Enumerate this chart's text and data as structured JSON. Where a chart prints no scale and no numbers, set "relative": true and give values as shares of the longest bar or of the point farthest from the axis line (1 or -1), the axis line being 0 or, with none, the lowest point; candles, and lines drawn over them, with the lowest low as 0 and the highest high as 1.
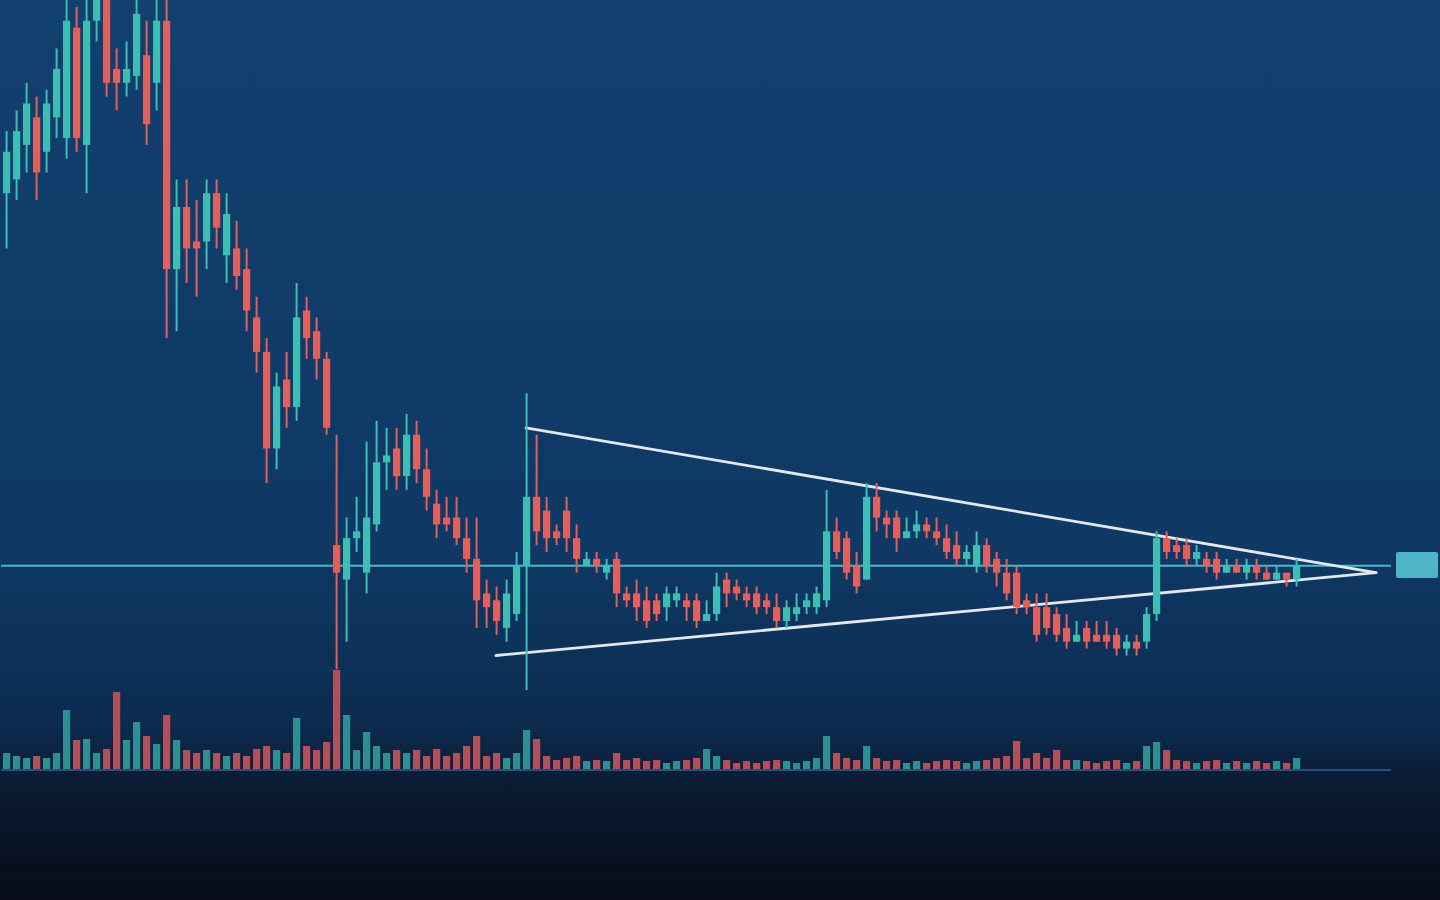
{
  "chart_data": [
    {
      "type": "candlestick",
      "relative": true,
      "categories": [
        null,
        null,
        null,
        null,
        null,
        null,
        null,
        null,
        null,
        null,
        null,
        null,
        null,
        null,
        null,
        null,
        null,
        null,
        null,
        null,
        null,
        null,
        null,
        null,
        null,
        null,
        null,
        null,
        null,
        null,
        null,
        null,
        null,
        null,
        null,
        null,
        null,
        null,
        null,
        null,
        null,
        null,
        null,
        null,
        null,
        null,
        null,
        null,
        null,
        null,
        null,
        null,
        null,
        null,
        null,
        null,
        null,
        null,
        null,
        null,
        null,
        null,
        null,
        null,
        null,
        null,
        null,
        null,
        null,
        null,
        null,
        null,
        null,
        null,
        null,
        null,
        null,
        null,
        null,
        null,
        null,
        null,
        null,
        null,
        null,
        null,
        null,
        null,
        null,
        null,
        null,
        null,
        null,
        null,
        null,
        null,
        null,
        null,
        null,
        null,
        null,
        null,
        null,
        null,
        null,
        null,
        null,
        null,
        null,
        null,
        null,
        null,
        null,
        null,
        null,
        null,
        null,
        null,
        null,
        null,
        null,
        null,
        null,
        null,
        null,
        null,
        null,
        null,
        null,
        null,
        null,
        null,
        null,
        null,
        null,
        null,
        null,
        null,
        null
      ],
      "ohlc": [
        [
          0.72,
          0.81,
          0.64,
          0.78
        ],
        [
          0.74,
          0.84,
          0.71,
          0.81
        ],
        [
          0.79,
          0.88,
          0.75,
          0.85
        ],
        [
          0.83,
          0.86,
          0.71,
          0.75
        ],
        [
          0.78,
          0.87,
          0.75,
          0.85
        ],
        [
          0.83,
          0.93,
          0.8,
          0.9
        ],
        [
          0.8,
          1,
          0.77,
          0.97
        ],
        [
          0.96,
          0.99,
          0.78,
          0.8
        ],
        [
          0.79,
          1,
          0.72,
          0.97
        ],
        [
          0.97,
          1,
          0.94,
          1
        ],
        [
          1,
          1,
          0.86,
          0.88
        ],
        [
          0.9,
          0.93,
          0.84,
          0.88
        ],
        [
          0.88,
          0.94,
          0.86,
          0.9
        ],
        [
          0.89,
          1,
          0.87,
          0.98
        ],
        [
          0.92,
          0.97,
          0.79,
          0.82
        ],
        [
          0.88,
          1,
          0.84,
          0.97
        ],
        [
          0.97,
          1,
          0.51,
          0.61
        ],
        [
          0.61,
          0.74,
          0.52,
          0.7
        ],
        [
          0.7,
          0.74,
          0.59,
          0.64
        ],
        [
          0.65,
          0.71,
          0.57,
          0.64
        ],
        [
          0.65,
          0.74,
          0.61,
          0.72
        ],
        [
          0.72,
          0.74,
          0.64,
          0.67
        ],
        [
          0.63,
          0.72,
          0.59,
          0.69
        ],
        [
          0.64,
          0.68,
          0.58,
          0.6
        ],
        [
          0.61,
          0.64,
          0.52,
          0.55
        ],
        [
          0.54,
          0.57,
          0.46,
          0.49
        ],
        [
          0.49,
          0.51,
          0.3,
          0.35
        ],
        [
          0.35,
          0.46,
          0.32,
          0.44
        ],
        [
          0.45,
          0.49,
          0.38,
          0.41
        ],
        [
          0.41,
          0.59,
          0.39,
          0.54
        ],
        [
          0.55,
          0.57,
          0.48,
          0.51
        ],
        [
          0.52,
          0.54,
          0.45,
          0.48
        ],
        [
          0.48,
          0.49,
          0.37,
          0.38
        ],
        [
          0.21,
          0.37,
          0.03,
          0.17
        ],
        [
          0.16,
          0.25,
          0.07,
          0.22
        ],
        [
          0.22,
          0.28,
          0.2,
          0.23
        ],
        [
          0.17,
          0.36,
          0.14,
          0.25
        ],
        [
          0.24,
          0.39,
          0.23,
          0.33
        ],
        [
          0.33,
          0.38,
          0.29,
          0.34
        ],
        [
          0.35,
          0.38,
          0.29,
          0.31
        ],
        [
          0.31,
          0.4,
          0.29,
          0.37
        ],
        [
          0.37,
          0.39,
          0.3,
          0.32
        ],
        [
          0.32,
          0.35,
          0.26,
          0.28
        ],
        [
          0.27,
          0.29,
          0.22,
          0.24
        ],
        [
          0.25,
          0.28,
          0.23,
          0.24
        ],
        [
          0.25,
          0.28,
          0.21,
          0.22
        ],
        [
          0.22,
          0.25,
          0.17,
          0.19
        ],
        [
          0.19,
          0.25,
          0.09,
          0.13
        ],
        [
          0.14,
          0.16,
          0.09,
          0.12
        ],
        [
          0.13,
          0.15,
          0.08,
          0.1
        ],
        [
          0.09,
          0.16,
          0.07,
          0.14
        ],
        [
          0.11,
          0.2,
          0.1,
          0.18
        ],
        [
          0.18,
          0.43,
          0,
          0.28
        ],
        [
          0.28,
          0.37,
          0.21,
          0.23
        ],
        [
          0.26,
          0.28,
          0.2,
          0.22
        ],
        [
          0.23,
          0.24,
          0.21,
          0.22
        ],
        [
          0.26,
          0.28,
          0.2,
          0.22
        ],
        [
          0.22,
          0.24,
          0.17,
          0.19
        ],
        [
          0.18,
          0.2,
          0.18,
          0.19
        ],
        [
          0.19,
          0.2,
          0.17,
          0.18
        ],
        [
          0.17,
          0.19,
          0.16,
          0.18
        ],
        [
          0.19,
          0.2,
          0.12,
          0.14
        ],
        [
          0.14,
          0.15,
          0.12,
          0.13
        ],
        [
          0.14,
          0.16,
          0.1,
          0.12
        ],
        [
          0.13,
          0.15,
          0.09,
          0.1
        ],
        [
          0.13,
          0.14,
          0.1,
          0.11
        ],
        [
          0.12,
          0.15,
          0.1,
          0.14
        ],
        [
          0.13,
          0.15,
          0.12,
          0.14
        ],
        [
          0.13,
          0.14,
          0.1,
          0.12
        ],
        [
          0.13,
          0.14,
          0.09,
          0.1
        ],
        [
          0.1,
          0.13,
          0.1,
          0.11
        ],
        [
          0.11,
          0.17,
          0.1,
          0.15
        ],
        [
          0.16,
          0.17,
          0.12,
          0.14
        ],
        [
          0.15,
          0.16,
          0.13,
          0.14
        ],
        [
          0.14,
          0.15,
          0.12,
          0.13
        ],
        [
          0.14,
          0.15,
          0.11,
          0.12
        ],
        [
          0.13,
          0.14,
          0.11,
          0.12
        ],
        [
          0.12,
          0.14,
          0.09,
          0.1
        ],
        [
          0.1,
          0.13,
          0.09,
          0.12
        ],
        [
          0.11,
          0.14,
          0.1,
          0.12
        ],
        [
          0.12,
          0.14,
          0.11,
          0.13
        ],
        [
          0.12,
          0.15,
          0.11,
          0.14
        ],
        [
          0.13,
          0.29,
          0.12,
          0.23
        ],
        [
          0.23,
          0.25,
          0.19,
          0.2
        ],
        [
          0.22,
          0.23,
          0.16,
          0.17
        ],
        [
          0.18,
          0.2,
          0.14,
          0.15
        ],
        [
          0.16,
          0.3,
          0.16,
          0.28
        ],
        [
          0.28,
          0.3,
          0.23,
          0.25
        ],
        [
          0.25,
          0.26,
          0.22,
          0.24
        ],
        [
          0.25,
          0.26,
          0.2,
          0.22
        ],
        [
          0.22,
          0.25,
          0.22,
          0.23
        ],
        [
          0.23,
          0.26,
          0.22,
          0.24
        ],
        [
          0.24,
          0.25,
          0.22,
          0.23
        ],
        [
          0.23,
          0.25,
          0.21,
          0.22
        ],
        [
          0.22,
          0.24,
          0.19,
          0.2
        ],
        [
          0.21,
          0.23,
          0.18,
          0.19
        ],
        [
          0.19,
          0.21,
          0.18,
          0.2
        ],
        [
          0.18,
          0.23,
          0.17,
          0.21
        ],
        [
          0.21,
          0.22,
          0.17,
          0.18
        ],
        [
          0.19,
          0.2,
          0.15,
          0.17
        ],
        [
          0.17,
          0.19,
          0.13,
          0.14
        ],
        [
          0.17,
          0.18,
          0.11,
          0.12
        ],
        [
          0.13,
          0.14,
          0.11,
          0.12
        ],
        [
          0.12,
          0.14,
          0.07,
          0.08
        ],
        [
          0.12,
          0.14,
          0.08,
          0.09
        ],
        [
          0.11,
          0.12,
          0.07,
          0.08
        ],
        [
          0.09,
          0.11,
          0.06,
          0.07
        ],
        [
          0.07,
          0.1,
          0.07,
          0.08
        ],
        [
          0.09,
          0.1,
          0.06,
          0.07
        ],
        [
          0.08,
          0.1,
          0.07,
          0.07
        ],
        [
          0.08,
          0.1,
          0.06,
          0.07
        ],
        [
          0.08,
          0.09,
          0.05,
          0.06
        ],
        [
          0.06,
          0.08,
          0.05,
          0.07
        ],
        [
          0.07,
          0.08,
          0.05,
          0.06
        ],
        [
          0.07,
          0.12,
          0.06,
          0.11
        ],
        [
          0.11,
          0.23,
          0.1,
          0.22
        ],
        [
          0.22,
          0.23,
          0.19,
          0.2
        ],
        [
          0.21,
          0.22,
          0.19,
          0.2
        ],
        [
          0.21,
          0.22,
          0.18,
          0.19
        ],
        [
          0.19,
          0.21,
          0.18,
          0.2
        ],
        [
          0.19,
          0.2,
          0.17,
          0.18
        ],
        [
          0.19,
          0.2,
          0.16,
          0.17
        ],
        [
          0.17,
          0.19,
          0.17,
          0.18
        ],
        [
          0.18,
          0.19,
          0.17,
          0.17
        ],
        [
          0.17,
          0.19,
          0.16,
          0.18
        ],
        [
          0.18,
          0.19,
          0.16,
          0.17
        ],
        [
          0.17,
          0.18,
          0.16,
          0.16
        ],
        [
          0.16,
          0.18,
          0.16,
          0.17
        ],
        [
          0.17,
          0.17,
          0.15,
          0.16
        ],
        [
          0.16,
          0.19,
          0.15,
          0.18
        ],
        null,
        null,
        null,
        null,
        null,
        null,
        null,
        null,
        null
      ],
      "colors": [
        "#3dbdb3",
        "#3dbdb3",
        "#3dbdb3",
        "#e0605e",
        "#3dbdb3",
        "#3dbdb3",
        "#3dbdb3",
        "#e0605e",
        "#3dbdb3",
        "#3dbdb3",
        "#e0605e",
        "#e0605e",
        "#3dbdb3",
        "#3dbdb3",
        "#e0605e",
        "#3dbdb3",
        "#e0605e",
        "#3dbdb3",
        "#e0605e",
        "#e0605e",
        "#3dbdb3",
        "#e0605e",
        "#3dbdb3",
        "#e0605e",
        "#e0605e",
        "#e0605e",
        "#e0605e",
        "#3dbdb3",
        "#e0605e",
        "#3dbdb3",
        "#e0605e",
        "#e0605e",
        "#e0605e",
        "#e0605e",
        "#3dbdb3",
        "#3dbdb3",
        "#3dbdb3",
        "#3dbdb3",
        "#3dbdb3",
        "#e0605e",
        "#3dbdb3",
        "#e0605e",
        "#e0605e",
        "#e0605e",
        "#e0605e",
        "#e0605e",
        "#e0605e",
        "#e0605e",
        "#e0605e",
        "#e0605e",
        "#3dbdb3",
        "#3dbdb3",
        "#3dbdb3",
        "#e0605e",
        "#e0605e",
        "#e0605e",
        "#e0605e",
        "#e0605e",
        "#3dbdb3",
        "#e0605e",
        "#3dbdb3",
        "#e0605e",
        "#e0605e",
        "#e0605e",
        "#e0605e",
        "#e0605e",
        "#3dbdb3",
        "#3dbdb3",
        "#e0605e",
        "#e0605e",
        "#3dbdb3",
        "#3dbdb3",
        "#e0605e",
        "#e0605e",
        "#e0605e",
        "#e0605e",
        "#e0605e",
        "#e0605e",
        "#3dbdb3",
        "#3dbdb3",
        "#3dbdb3",
        "#3dbdb3",
        "#3dbdb3",
        "#e0605e",
        "#e0605e",
        "#e0605e",
        "#3dbdb3",
        "#e0605e",
        "#e0605e",
        "#e0605e",
        "#3dbdb3",
        "#3dbdb3",
        "#e0605e",
        "#e0605e",
        "#e0605e",
        "#e0605e",
        "#3dbdb3",
        "#3dbdb3",
        "#e0605e",
        "#e0605e",
        "#e0605e",
        "#e0605e",
        "#e0605e",
        "#e0605e",
        "#e0605e",
        "#e0605e",
        "#e0605e",
        "#3dbdb3",
        "#e0605e",
        "#e0605e",
        "#e0605e",
        "#e0605e",
        "#3dbdb3",
        "#e0605e",
        "#3dbdb3",
        "#3dbdb3",
        "#e0605e",
        "#e0605e",
        "#e0605e",
        "#3dbdb3",
        "#e0605e",
        "#e0605e",
        "#3dbdb3",
        "#e0605e",
        "#3dbdb3",
        "#e0605e",
        "#e0605e",
        "#3dbdb3",
        "#e0605e",
        "#3dbdb3",
        null,
        null,
        null,
        null,
        null,
        null,
        null,
        null,
        null
      ],
      "series": [
        {
          "type": "line",
          "color": "#e3e8ef",
          "values": [
            null,
            null,
            null,
            null,
            null,
            null,
            null,
            null,
            null,
            null,
            null,
            null,
            null,
            null,
            null,
            null,
            null,
            null,
            null,
            null,
            null,
            null,
            null,
            null,
            null,
            null,
            null,
            null,
            null,
            null,
            null,
            null,
            null,
            null,
            null,
            null,
            null,
            null,
            null,
            null,
            null,
            null,
            null,
            null,
            null,
            null,
            null,
            null,
            null,
            null,
            null,
            null,
            0.38,
            null,
            null,
            null,
            null,
            null,
            null,
            null,
            null,
            null,
            null,
            null,
            null,
            null,
            null,
            null,
            null,
            null,
            null,
            null,
            null,
            null,
            null,
            null,
            null,
            null,
            null,
            null,
            null,
            null,
            null,
            null,
            null,
            null,
            null,
            null,
            null,
            null,
            null,
            null,
            null,
            null,
            null,
            null,
            null,
            null,
            null,
            null,
            null,
            null,
            null,
            null,
            null,
            null,
            null,
            null,
            null,
            null,
            null,
            null,
            null,
            null,
            null,
            null,
            null,
            null,
            null,
            null,
            null,
            null,
            null,
            null,
            null,
            null,
            null,
            null,
            null,
            null,
            null,
            null,
            null,
            null,
            null,
            null,
            null,
            0.17,
            null
          ]
        },
        {
          "type": "line",
          "color": "#e3e8ef",
          "values": [
            null,
            null,
            null,
            null,
            null,
            null,
            null,
            null,
            null,
            null,
            null,
            null,
            null,
            null,
            null,
            null,
            null,
            null,
            null,
            null,
            null,
            null,
            null,
            null,
            null,
            null,
            null,
            null,
            null,
            null,
            null,
            null,
            null,
            null,
            null,
            null,
            null,
            null,
            null,
            null,
            null,
            null,
            null,
            null,
            null,
            null,
            null,
            null,
            null,
            0.05,
            null,
            null,
            null,
            null,
            null,
            null,
            null,
            null,
            null,
            null,
            null,
            null,
            null,
            null,
            null,
            null,
            null,
            null,
            null,
            null,
            null,
            null,
            null,
            null,
            null,
            null,
            null,
            null,
            null,
            null,
            null,
            null,
            null,
            null,
            null,
            null,
            null,
            null,
            null,
            null,
            null,
            null,
            null,
            null,
            null,
            null,
            null,
            null,
            null,
            null,
            null,
            null,
            null,
            null,
            null,
            null,
            null,
            null,
            null,
            null,
            null,
            null,
            null,
            null,
            null,
            null,
            null,
            null,
            null,
            null,
            null,
            null,
            null,
            null,
            null,
            null,
            null,
            null,
            null,
            null,
            null,
            null,
            null,
            null,
            null,
            null,
            null,
            0.17,
            null
          ]
        }
      ],
      "ref_lines": [
        {
          "axis": "y",
          "value": 0.18,
          "color": "#4fb6c9"
        }
      ]
    },
    {
      "type": "bar",
      "relative": true,
      "categories": [
        null,
        null,
        null,
        null,
        null,
        null,
        null,
        null,
        null,
        null,
        null,
        null,
        null,
        null,
        null,
        null,
        null,
        null,
        null,
        null,
        null,
        null,
        null,
        null,
        null,
        null,
        null,
        null,
        null,
        null,
        null,
        null,
        null,
        null,
        null,
        null,
        null,
        null,
        null,
        null,
        null,
        null,
        null,
        null,
        null,
        null,
        null,
        null,
        null,
        null,
        null,
        null,
        null,
        null,
        null,
        null,
        null,
        null,
        null,
        null,
        null,
        null,
        null,
        null,
        null,
        null,
        null,
        null,
        null,
        null,
        null,
        null,
        null,
        null,
        null,
        null,
        null,
        null,
        null,
        null,
        null,
        null,
        null,
        null,
        null,
        null,
        null,
        null,
        null,
        null,
        null,
        null,
        null,
        null,
        null,
        null,
        null,
        null,
        null,
        null,
        null,
        null,
        null,
        null,
        null,
        null,
        null,
        null,
        null,
        null,
        null,
        null,
        null,
        null,
        null,
        null,
        null,
        null,
        null,
        null,
        null,
        null,
        null,
        null,
        null,
        null,
        null,
        null,
        null,
        null,
        null,
        null,
        null,
        null,
        null,
        null,
        null,
        null,
        null
      ],
      "values": [
        0.17,
        0.14,
        0.12,
        0.14,
        0.12,
        0.17,
        0.6,
        0.3,
        0.31,
        0.17,
        0.21,
        0.78,
        0.3,
        0.48,
        0.34,
        0.26,
        0.55,
        0.3,
        0.2,
        0.17,
        0.2,
        0.17,
        0.14,
        0.17,
        0.14,
        0.21,
        0.24,
        0.2,
        0.17,
        0.52,
        0.24,
        0.2,
        0.28,
        1,
        0.55,
        0.2,
        0.38,
        0.24,
        0.17,
        0.2,
        0.17,
        0.2,
        0.14,
        0.21,
        0.14,
        0.17,
        0.24,
        0.34,
        0.14,
        0.17,
        0.12,
        0.17,
        0.4,
        0.31,
        0.14,
        0.1,
        0.12,
        0.14,
        0.09,
        0.1,
        0.09,
        0.17,
        0.1,
        0.12,
        0.09,
        0.1,
        0.07,
        0.09,
        0.1,
        0.12,
        0.21,
        0.14,
        0.1,
        0.07,
        0.09,
        0.07,
        0.09,
        0.1,
        0.09,
        0.07,
        0.09,
        0.12,
        0.34,
        0.17,
        0.12,
        0.1,
        0.24,
        0.12,
        0.09,
        0.1,
        0.07,
        0.09,
        0.07,
        0.09,
        0.1,
        0.09,
        0.07,
        0.09,
        0.1,
        0.12,
        0.14,
        0.29,
        0.12,
        0.17,
        0.12,
        0.2,
        0.1,
        0.1,
        0.09,
        0.07,
        0.09,
        0.1,
        0.07,
        0.09,
        0.24,
        0.28,
        0.2,
        0.1,
        0.09,
        0.07,
        0.09,
        0.1,
        0.07,
        0.09,
        0.07,
        0.09,
        0.07,
        0.09,
        0.07,
        0.12,
        null,
        null,
        null,
        null,
        null,
        null,
        null,
        null,
        null
      ],
      "colors": [
        "#2e8f93",
        "#2e8f93",
        "#2e8f93",
        "#b0505a",
        "#2e8f93",
        "#2e8f93",
        "#2e8f93",
        "#b0505a",
        "#2e8f93",
        "#2e8f93",
        "#b0505a",
        "#b0505a",
        "#2e8f93",
        "#2e8f93",
        "#b0505a",
        "#2e8f93",
        "#b0505a",
        "#2e8f93",
        "#b0505a",
        "#b0505a",
        "#2e8f93",
        "#b0505a",
        "#2e8f93",
        "#b0505a",
        "#b0505a",
        "#b0505a",
        "#b0505a",
        "#2e8f93",
        "#b0505a",
        "#2e8f93",
        "#b0505a",
        "#b0505a",
        "#b0505a",
        "#b0505a",
        "#2e8f93",
        "#2e8f93",
        "#2e8f93",
        "#2e8f93",
        "#2e8f93",
        "#b0505a",
        "#2e8f93",
        "#b0505a",
        "#b0505a",
        "#b0505a",
        "#b0505a",
        "#b0505a",
        "#b0505a",
        "#b0505a",
        "#b0505a",
        "#b0505a",
        "#2e8f93",
        "#2e8f93",
        "#2e8f93",
        "#b0505a",
        "#b0505a",
        "#b0505a",
        "#b0505a",
        "#b0505a",
        "#2e8f93",
        "#b0505a",
        "#2e8f93",
        "#b0505a",
        "#b0505a",
        "#b0505a",
        "#b0505a",
        "#b0505a",
        "#2e8f93",
        "#2e8f93",
        "#b0505a",
        "#b0505a",
        "#2e8f93",
        "#2e8f93",
        "#b0505a",
        "#b0505a",
        "#b0505a",
        "#b0505a",
        "#b0505a",
        "#b0505a",
        "#2e8f93",
        "#2e8f93",
        "#2e8f93",
        "#2e8f93",
        "#2e8f93",
        "#b0505a",
        "#b0505a",
        "#b0505a",
        "#2e8f93",
        "#b0505a",
        "#b0505a",
        "#b0505a",
        "#2e8f93",
        "#2e8f93",
        "#b0505a",
        "#b0505a",
        "#b0505a",
        "#b0505a",
        "#2e8f93",
        "#2e8f93",
        "#b0505a",
        "#b0505a",
        "#b0505a",
        "#b0505a",
        "#b0505a",
        "#b0505a",
        "#b0505a",
        "#b0505a",
        "#b0505a",
        "#2e8f93",
        "#b0505a",
        "#b0505a",
        "#b0505a",
        "#b0505a",
        "#2e8f93",
        "#b0505a",
        "#2e8f93",
        "#2e8f93",
        "#b0505a",
        "#b0505a",
        "#b0505a",
        "#2e8f93",
        "#b0505a",
        "#b0505a",
        "#2e8f93",
        "#b0505a",
        "#2e8f93",
        "#b0505a",
        "#b0505a",
        "#2e8f93",
        "#b0505a",
        "#2e8f93",
        null,
        null,
        null,
        null,
        null,
        null,
        null,
        null,
        null
      ]
    }
  ]
}
